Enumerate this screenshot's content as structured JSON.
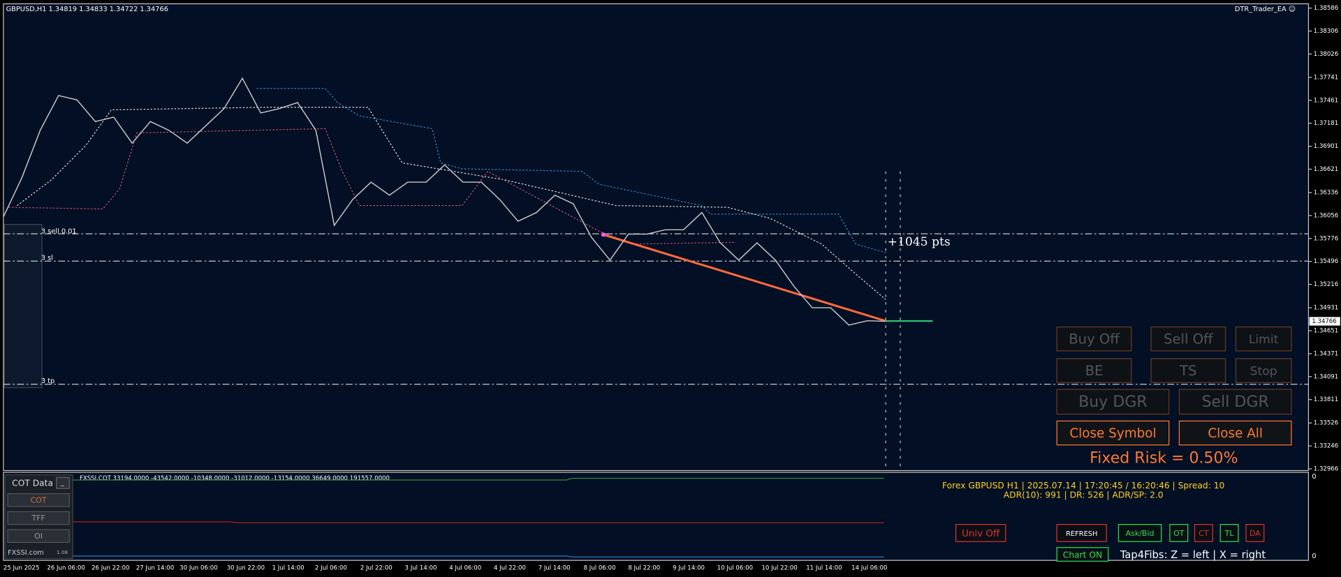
{
  "header": {
    "symbol_info": "GBPUSD,H1  1.34819 1.34833 1.34722 1.34766",
    "ea_name": "DTR_Trader_EA ☺"
  },
  "price_chart": {
    "ylim": [
      1.32945,
      1.38638
    ],
    "yticks": [
      1.38586,
      1.38306,
      1.38026,
      1.37741,
      1.37461,
      1.37181,
      1.36901,
      1.36621,
      1.36336,
      1.36056,
      1.35776,
      1.35496,
      1.35216,
      1.34931,
      1.34651,
      1.34371,
      1.34091,
      1.33811,
      1.33526,
      1.33246,
      1.32966
    ],
    "current_price": 1.34766,
    "closes": [
      1.3604,
      1.36515,
      1.37096,
      1.37519,
      1.37466,
      1.37202,
      1.37255,
      1.36938,
      1.37202,
      1.37096,
      1.36938,
      1.37149,
      1.3736,
      1.3773,
      1.37307,
      1.3736,
      1.37434,
      1.37096,
      1.35935,
      1.36251,
      1.36463,
      1.36304,
      1.36463,
      1.36463,
      1.36674,
      1.36463,
      1.36463,
      1.36251,
      1.35987,
      1.36093,
      1.36304,
      1.36199,
      1.35787,
      1.35512,
      1.35829,
      1.35829,
      1.35882,
      1.35882,
      1.36093,
      1.35723,
      1.35512,
      1.35723,
      1.35512,
      1.35195,
      1.34931,
      1.34931,
      1.3472,
      1.34773,
      1.34766
    ],
    "order_labels": [
      "3 sell 0.01",
      "3 sl",
      "3 tp"
    ],
    "profit_label": "+1045 pts",
    "x_labels": [
      "25 Jun 2025",
      "26 Jun 06:00",
      "26 Jun 22:00",
      "27 Jun 14:00",
      "30 Jun 06:00",
      "30 Jun 22:00",
      "1 Jul 14:00",
      "2 Jul 06:00",
      "2 Jul 22:00",
      "3 Jul 14:00",
      "4 Jul 06:00",
      "4 Jul 22:00",
      "7 Jul 14:00",
      "8 Jul 06:00",
      "8 Jul 22:00",
      "9 Jul 14:00",
      "10 Jul 06:00",
      "10 Jul 22:00",
      "11 Jul 14:00",
      "14 Jul 06:00"
    ]
  },
  "trade_panel": {
    "buttons": [
      "Buy Off",
      "Sell Off",
      "Limit",
      "BE",
      "TS",
      "Stop",
      "Buy DGR",
      "Sell DGR",
      "Close Symbol",
      "Close All"
    ],
    "risk": "Fixed Risk = 0.50%"
  },
  "cot_panel": {
    "title": "COT Data",
    "minimize": "_",
    "tabs": [
      "COT",
      "TFF",
      "OI"
    ],
    "brand": "FXSSI.com",
    "version": "1.08",
    "indicator_info": "FXSSI.COT 33194.0000 -43542.0000 -10348.0000 -31012.0000 -13154.0000 36649.0000 191557.0000",
    "axis_labels": [
      "0",
      "0"
    ]
  },
  "status": {
    "line1": "Forex GBPUSD H1 | 2025.07.14 | 17:20:45 / 16:20:46 | Spread: 10",
    "line2": "ADR(10): 991 | DR: 526 | ADR/SP: 2.0"
  },
  "bottom_buttons": [
    "Univ Off",
    "REFRESH",
    "Ask/Bid",
    "OT",
    "CT",
    "TL",
    "DA",
    "Chart ON"
  ],
  "hint": "Tap4Fibs: Z = left | X = right"
}
